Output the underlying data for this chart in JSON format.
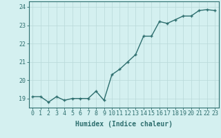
{
  "x": [
    0,
    1,
    2,
    3,
    4,
    5,
    6,
    7,
    8,
    9,
    10,
    11,
    12,
    13,
    14,
    15,
    16,
    17,
    18,
    19,
    20,
    21,
    22,
    23
  ],
  "y": [
    19.1,
    19.1,
    18.8,
    19.1,
    18.9,
    19.0,
    19.0,
    19.0,
    19.4,
    18.9,
    20.3,
    20.6,
    21.0,
    21.4,
    22.4,
    22.4,
    23.2,
    23.1,
    23.3,
    23.5,
    23.5,
    23.8,
    23.85,
    23.8
  ],
  "line_color": "#2d6e6e",
  "marker": "+",
  "marker_color": "#2d6e6e",
  "bg_color": "#d4f0f0",
  "grid_color": "#b8d8d8",
  "xlabel": "Humidex (Indice chaleur)",
  "xlim": [
    -0.5,
    23.5
  ],
  "ylim": [
    18.5,
    24.3
  ],
  "yticks": [
    19,
    20,
    21,
    22,
    23,
    24
  ],
  "xticks": [
    0,
    1,
    2,
    3,
    4,
    5,
    6,
    7,
    8,
    9,
    10,
    11,
    12,
    13,
    14,
    15,
    16,
    17,
    18,
    19,
    20,
    21,
    22,
    23
  ],
  "tick_color": "#2d6e6e",
  "label_fontsize": 7.0,
  "tick_fontsize": 6.0,
  "spine_color": "#2d6e6e",
  "markersize": 3.5,
  "linewidth": 1.0
}
